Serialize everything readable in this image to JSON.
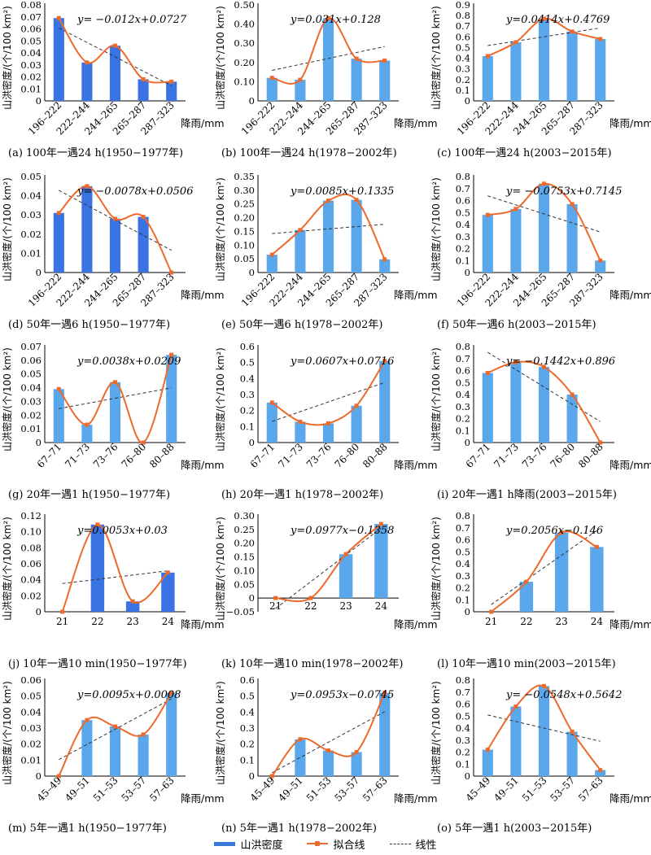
{
  "legend": {
    "bar": "山洪密度",
    "fit": "拟合线",
    "linear": "线性"
  },
  "colors": {
    "bar_dark": "#3a73e3",
    "bar_light": "#5aa7ec",
    "fit": "#ee6a2b",
    "trend": "#333333"
  },
  "chart_data": [
    {
      "type": "bar",
      "caption": "(a) 100年一遇24 h(1950−1977年)",
      "equation": "y= −0.012x+0.0727",
      "ylabel": "山洪密度/(个/100 km²)",
      "xlabel": "降雨/mm",
      "categories": [
        "196–222",
        "222–244",
        "244–265",
        "265–287",
        "287–323"
      ],
      "values": [
        0.069,
        0.032,
        0.046,
        0.018,
        0.016
      ],
      "ylim": [
        0,
        0.08
      ],
      "yticks": [
        "0",
        "0.01",
        "0.02",
        "0.03",
        "0.04",
        "0.05",
        "0.06",
        "0.07",
        "0.08"
      ],
      "trend": {
        "slope": -0.012,
        "intercept": 0.0727
      }
    },
    {
      "type": "bar",
      "caption": "(b) 100年一遇24 h(1978−2002年)",
      "equation": "y=0.031x+0.128",
      "ylabel": "山洪密度/(个/100 km²)",
      "xlabel": "降雨/mm",
      "categories": [
        "196–222",
        "222–244",
        "244–265",
        "265–287",
        "287–323"
      ],
      "values": [
        0.12,
        0.11,
        0.43,
        0.22,
        0.21
      ],
      "ylim": [
        0,
        0.5
      ],
      "yticks": [
        "0",
        "0.10",
        "0.20",
        "0.30",
        "0.40",
        "0.50"
      ],
      "trend": {
        "slope": 0.031,
        "intercept": 0.128
      }
    },
    {
      "type": "bar",
      "caption": "(c) 100年一遇24 h(2003−2015年)",
      "equation": "y=0.0414x+0.4769",
      "ylabel": "山洪密度/(个/100 km²)",
      "xlabel": "降雨/mm",
      "categories": [
        "196–222",
        "222–244",
        "244–265",
        "265–287",
        "287–323"
      ],
      "values": [
        0.42,
        0.55,
        0.77,
        0.65,
        0.58
      ],
      "ylim": [
        0,
        0.9
      ],
      "yticks": [
        "0",
        "0.1",
        "0.2",
        "0.3",
        "0.4",
        "0.5",
        "0.6",
        "0.7",
        "0.8",
        "0.9"
      ],
      "trend": {
        "slope": 0.0414,
        "intercept": 0.4769
      }
    },
    {
      "type": "bar",
      "caption": "(d) 50年一遇6 h(1950−1977年)",
      "equation": "y= −0.0078x+0.0506",
      "ylabel": "山洪密度/(个/100 km²)",
      "xlabel": "降雨/mm",
      "categories": [
        "196–222",
        "222–244",
        "244–265",
        "265–287",
        "287–323"
      ],
      "values": [
        0.031,
        0.045,
        0.028,
        0.029,
        0
      ],
      "ylim": [
        0,
        0.05
      ],
      "yticks": [
        "0",
        "0.01",
        "0.02",
        "0.03",
        "0.04",
        "0.05"
      ],
      "trend": {
        "slope": -0.0078,
        "intercept": 0.0506
      }
    },
    {
      "type": "bar",
      "caption": "(e) 50年一遇6 h(1978−2002年)",
      "equation": "y=0.0085x+0.1335",
      "ylabel": "山洪密度/(个/100 km²)",
      "xlabel": "降雨/mm",
      "categories": [
        "196–222",
        "222–244",
        "244–265",
        "265–287",
        "287–323"
      ],
      "values": [
        0.065,
        0.155,
        0.262,
        0.265,
        0.048
      ],
      "ylim": [
        0,
        0.35
      ],
      "yticks": [
        "0",
        "0.05",
        "0.10",
        "0.15",
        "0.20",
        "0.25",
        "0.30",
        "0.35"
      ],
      "trend": {
        "slope": 0.0085,
        "intercept": 0.1335
      }
    },
    {
      "type": "bar",
      "caption": "(f) 50年一遇6 h(2003−2015年)",
      "equation": "y= −0.0753x+0.7145",
      "ylabel": "山洪密度/(个/100 km²)",
      "xlabel": "降雨/mm",
      "categories": [
        "196–222",
        "222–244",
        "244–265",
        "265–287",
        "287–323"
      ],
      "values": [
        0.48,
        0.53,
        0.74,
        0.57,
        0.1
      ],
      "ylim": [
        0,
        0.8
      ],
      "yticks": [
        "0",
        "0.1",
        "0.2",
        "0.3",
        "0.4",
        "0.5",
        "0.6",
        "0.7",
        "0.8"
      ],
      "trend": {
        "slope": -0.0753,
        "intercept": 0.7145
      }
    },
    {
      "type": "bar",
      "caption": "(g) 20年一遇1 h(1950−1977年)",
      "equation": "y=0.0038x+0.0209",
      "ylabel": "山洪密度/(个/100 km²)",
      "xlabel": "降雨/mm",
      "categories": [
        "67–71",
        "71–73",
        "73–76",
        "76–80",
        "80–88"
      ],
      "values": [
        0.039,
        0.013,
        0.044,
        0,
        0.064
      ],
      "ylim": [
        0,
        0.07
      ],
      "yticks": [
        "0",
        "0.01",
        "0.02",
        "0.03",
        "0.04",
        "0.05",
        "0.06",
        "0.07"
      ],
      "trend": {
        "slope": 0.0038,
        "intercept": 0.0209
      }
    },
    {
      "type": "bar",
      "caption": "(h) 20年一遇1 h(1978−2002年)",
      "equation": "y=0.0607x+0.0716",
      "ylabel": "山洪密度/(个/100 km²)",
      "xlabel": "降雨/mm",
      "categories": [
        "67–71",
        "71–73",
        "73–76",
        "76–80",
        "80–88"
      ],
      "values": [
        0.25,
        0.13,
        0.12,
        0.23,
        0.51
      ],
      "ylim": [
        0,
        0.6
      ],
      "yticks": [
        "0",
        "0.1",
        "0.2",
        "0.3",
        "0.4",
        "0.5",
        "0.6"
      ],
      "trend": {
        "slope": 0.0607,
        "intercept": 0.0716
      }
    },
    {
      "type": "bar",
      "caption": "(i) 20年一遇1 h降雨(2003−2015年)",
      "equation": "y= −0.1442x+0.896",
      "ylabel": "山洪密度/(个/100 km²)",
      "xlabel": "降雨/mm",
      "categories": [
        "67–71",
        "71–73",
        "73–76",
        "76–80",
        "80–88"
      ],
      "values": [
        0.58,
        0.67,
        0.63,
        0.4,
        0
      ],
      "ylim": [
        0,
        0.8
      ],
      "yticks": [
        "0",
        "0.1",
        "0.2",
        "0.3",
        "0.4",
        "0.5",
        "0.6",
        "0.7",
        "0.8"
      ],
      "trend": {
        "slope": -0.1442,
        "intercept": 0.896
      }
    },
    {
      "type": "bar",
      "caption": "(j) 10年一遇10 min(1950−1977年)",
      "equation": "y=0.0053x+0.03",
      "ylabel": "山洪密度/(个/100 km²)",
      "xlabel": "降雨/mm",
      "categories": [
        "21",
        "22",
        "23",
        "24"
      ],
      "values": [
        0,
        0.109,
        0.013,
        0.049
      ],
      "ylim": [
        0,
        0.12
      ],
      "yticks": [
        "0",
        "0.02",
        "0.04",
        "0.06",
        "0.08",
        "0.10",
        "0.12"
      ],
      "trend": {
        "slope": 0.0053,
        "intercept": 0.03
      }
    },
    {
      "type": "bar",
      "caption": "(k) 10年一遇10 min(1978−2002年)",
      "equation": "y=0.0977x−0.1358",
      "ylabel": "山洪密度/(个/100 km²)",
      "xlabel": "降雨/mm",
      "categories": [
        "21",
        "22",
        "23",
        "24"
      ],
      "values": [
        0,
        0,
        0.16,
        0.27
      ],
      "ylim": [
        -0.05,
        0.3
      ],
      "yticks": [
        "−0.05",
        "0",
        "0.05",
        "0.10",
        "0.15",
        "0.20",
        "0.25",
        "0.30"
      ],
      "trend": {
        "slope": 0.0977,
        "intercept": -0.1358
      }
    },
    {
      "type": "bar",
      "caption": "(l) 10年一遇10 min(2003−2015年)",
      "equation": "y=0.2056x−0.146",
      "ylabel": "山洪密度/(个/100 km²)",
      "xlabel": "降雨/mm",
      "categories": [
        "21",
        "22",
        "23",
        "24"
      ],
      "values": [
        0,
        0.25,
        0.66,
        0.54
      ],
      "ylim": [
        0,
        0.8
      ],
      "yticks": [
        "0",
        "0.1",
        "0.2",
        "0.3",
        "0.4",
        "0.5",
        "0.6",
        "0.7",
        "0.8"
      ],
      "trend": {
        "slope": 0.2056,
        "intercept": -0.146
      }
    },
    {
      "type": "bar",
      "caption": "(m) 5年一遇1 h(1950−1977年)",
      "equation": "y=0.0095x+0.0008",
      "ylabel": "山洪密度/(个/100 km²)",
      "xlabel": "降雨/mm",
      "categories": [
        "45–49",
        "49–51",
        "51–53",
        "53–57",
        "57–63"
      ],
      "values": [
        0,
        0.035,
        0.031,
        0.026,
        0.052
      ],
      "ylim": [
        0,
        0.06
      ],
      "yticks": [
        "0",
        "0.01",
        "0.02",
        "0.03",
        "0.04",
        "0.05",
        "0.06"
      ],
      "trend": {
        "slope": 0.0095,
        "intercept": 0.0008
      }
    },
    {
      "type": "bar",
      "caption": "(n) 5年一遇1 h(1978−2002年)",
      "equation": "y=0.0953x−0.0745",
      "ylabel": "山洪密度/(个/100 km²)",
      "xlabel": "降雨/mm",
      "categories": [
        "45–49",
        "49–51",
        "51–53",
        "53–57",
        "57–63"
      ],
      "values": [
        0,
        0.23,
        0.16,
        0.15,
        0.52
      ],
      "ylim": [
        0,
        0.6
      ],
      "yticks": [
        "0",
        "0.1",
        "0.2",
        "0.3",
        "0.4",
        "0.5",
        "0.6"
      ],
      "trend": {
        "slope": 0.0953,
        "intercept": -0.0745
      }
    },
    {
      "type": "bar",
      "caption": "(o) 5年一遇1 h(2003−2015年)",
      "equation": "y= −0.0548x+0.5642",
      "ylabel": "山洪密度/(个/100 km²)",
      "xlabel": "降雨/mm",
      "categories": [
        "45–49",
        "49–51",
        "51–53",
        "53–57",
        "57–63"
      ],
      "values": [
        0.22,
        0.58,
        0.75,
        0.37,
        0.05
      ],
      "ylim": [
        0,
        0.8
      ],
      "yticks": [
        "0",
        "0.1",
        "0.2",
        "0.3",
        "0.4",
        "0.5",
        "0.6",
        "0.7",
        "0.8"
      ],
      "trend": {
        "slope": -0.0548,
        "intercept": 0.5642
      }
    }
  ]
}
